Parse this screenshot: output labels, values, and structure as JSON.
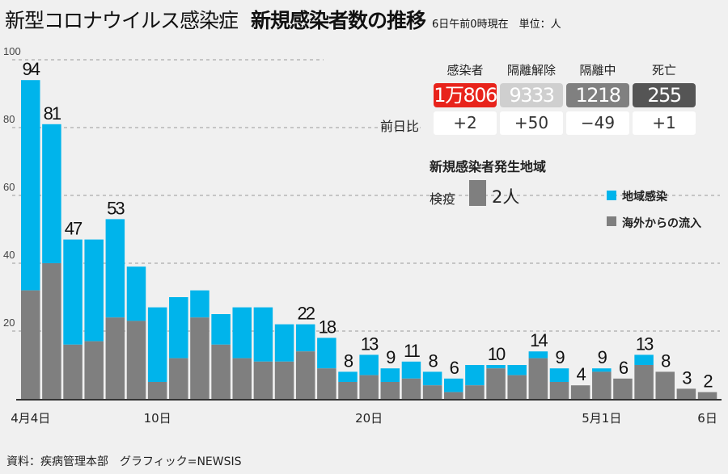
{
  "header": {
    "title_main": "新型コロナウイルス感染症",
    "title_bold": "新規感染者数の推移",
    "note": "6日午前0時現在　単位：人"
  },
  "summary": {
    "row_label": "前日比",
    "items": [
      {
        "label": "感染者",
        "value": "1万806",
        "diff": "+2",
        "color": "#e8231b"
      },
      {
        "label": "隔離解除",
        "value": "9333",
        "diff": "+50",
        "color": "#cfcfcf"
      },
      {
        "label": "隔離中",
        "value": "1218",
        "diff": "−49",
        "color": "#808080"
      },
      {
        "label": "死亡",
        "value": "255",
        "diff": "+1",
        "color": "#555555"
      }
    ]
  },
  "region": {
    "title": "新規感染者発生地域",
    "quarantine_label": "検疫",
    "quarantine_value": "2人"
  },
  "legend": {
    "domestic": "地域感染",
    "imported": "海外からの流入",
    "domestic_color": "#00b4eb",
    "imported_color": "#7f7f7f"
  },
  "footer": {
    "source": "資料：疾病管理本部　グラフィック=NEWSIS"
  },
  "chart_data": {
    "type": "bar",
    "stacked": true,
    "ylim": [
      0,
      100
    ],
    "yticks": [
      "20",
      "40",
      "60",
      "80",
      "100"
    ],
    "grid": true,
    "legend_position": "right",
    "xtick_labels": [
      {
        "index": 0,
        "label": "4月4日"
      },
      {
        "index": 6,
        "label": "10日"
      },
      {
        "index": 16,
        "label": "20日"
      },
      {
        "index": 27,
        "label": "5月1日"
      },
      {
        "index": 32,
        "label": "6日"
      }
    ],
    "series": [
      {
        "name": "海外からの流入",
        "values": [
          32,
          40,
          16,
          17,
          24,
          23,
          5,
          12,
          24,
          16,
          12,
          11,
          11,
          14,
          9,
          5,
          7,
          5,
          6,
          4,
          2,
          4,
          9,
          7,
          12,
          5,
          4,
          8,
          6,
          10,
          8,
          3,
          2
        ]
      },
      {
        "name": "地域感染",
        "values": [
          62,
          41,
          31,
          30,
          29,
          16,
          22,
          18,
          8,
          9,
          15,
          16,
          11,
          8,
          9,
          3,
          6,
          4,
          5,
          4,
          4,
          6,
          1,
          3,
          2,
          4,
          0,
          1,
          0,
          3,
          0,
          0,
          0
        ]
      }
    ],
    "totals": [
      94,
      81,
      47,
      47,
      53,
      39,
      27,
      30,
      32,
      25,
      27,
      27,
      22,
      22,
      18,
      8,
      13,
      9,
      11,
      8,
      6,
      10,
      10,
      10,
      14,
      9,
      4,
      9,
      6,
      13,
      8,
      3,
      2
    ],
    "labels": [
      "94",
      "81",
      "47",
      null,
      "53",
      null,
      null,
      null,
      null,
      null,
      null,
      null,
      null,
      "22",
      "18",
      "8",
      "13",
      "9",
      "11",
      "8",
      "6",
      null,
      "10",
      null,
      "14",
      "9",
      "4",
      "9",
      "6",
      "13",
      "8",
      "3",
      "2"
    ]
  }
}
